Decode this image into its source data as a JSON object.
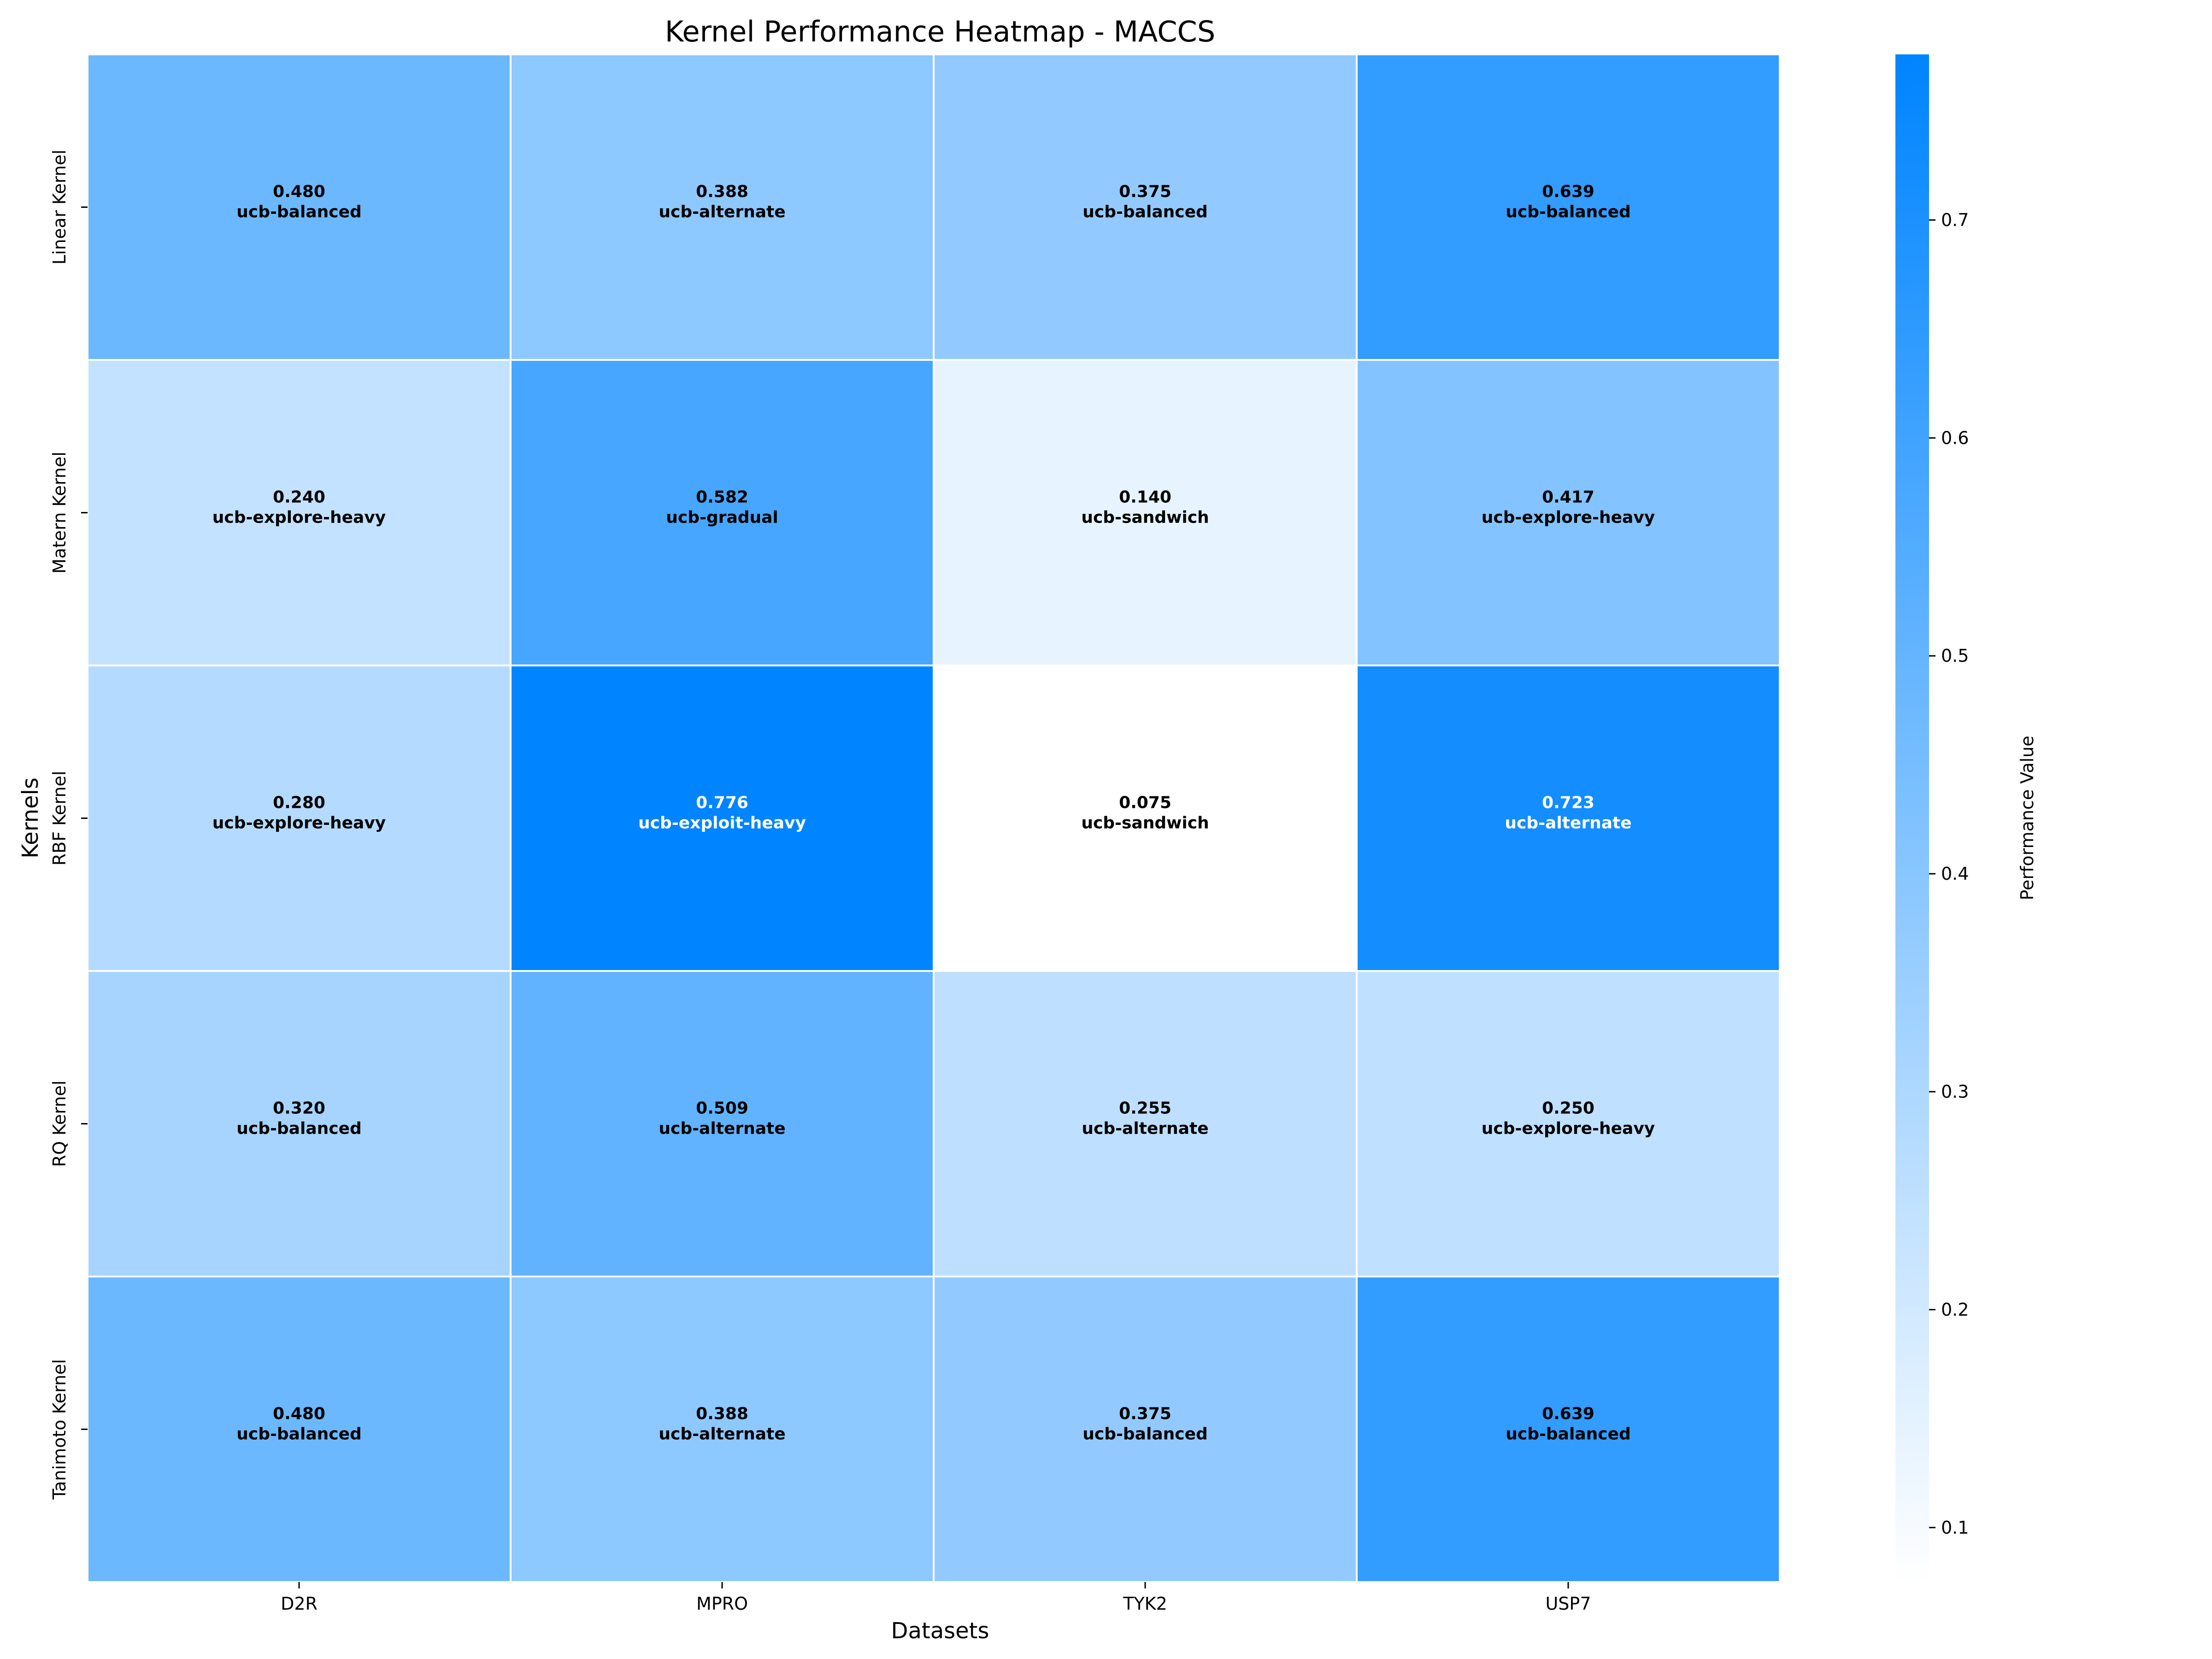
{
  "chart_data": {
    "type": "heatmap",
    "title": "Kernel Performance Heatmap - MACCS",
    "xlabel": "Datasets",
    "ylabel": "Kernels",
    "x_categories": [
      "D2R",
      "MPRO",
      "TYK2",
      "USP7"
    ],
    "y_categories": [
      "Linear Kernel",
      "Matern Kernel",
      "RBF Kernel",
      "RQ Kernel",
      "Tanimoto Kernel"
    ],
    "values": [
      [
        0.48,
        0.388,
        0.375,
        0.639
      ],
      [
        0.24,
        0.582,
        0.14,
        0.417
      ],
      [
        0.28,
        0.776,
        0.075,
        0.723
      ],
      [
        0.32,
        0.509,
        0.255,
        0.25
      ],
      [
        0.48,
        0.388,
        0.375,
        0.639
      ]
    ],
    "value_labels": [
      [
        "0.480",
        "0.388",
        "0.375",
        "0.639"
      ],
      [
        "0.240",
        "0.582",
        "0.140",
        "0.417"
      ],
      [
        "0.280",
        "0.776",
        "0.075",
        "0.723"
      ],
      [
        "0.320",
        "0.509",
        "0.255",
        "0.250"
      ],
      [
        "0.480",
        "0.388",
        "0.375",
        "0.639"
      ]
    ],
    "strategy_labels": [
      [
        "ucb-balanced",
        "ucb-alternate",
        "ucb-balanced",
        "ucb-balanced"
      ],
      [
        "ucb-explore-heavy",
        "ucb-gradual",
        "ucb-sandwich",
        "ucb-explore-heavy"
      ],
      [
        "ucb-explore-heavy",
        "ucb-exploit-heavy",
        "ucb-sandwich",
        "ucb-alternate"
      ],
      [
        "ucb-balanced",
        "ucb-alternate",
        "ucb-alternate",
        "ucb-explore-heavy"
      ],
      [
        "ucb-balanced",
        "ucb-alternate",
        "ucb-balanced",
        "ucb-balanced"
      ]
    ],
    "colorbar": {
      "label": "Performance Value",
      "range": [
        0.075,
        0.776
      ],
      "ticks": [
        0.1,
        0.2,
        0.3,
        0.4,
        0.5,
        0.6,
        0.7
      ],
      "colors": [
        "#ffffff",
        "#0084ff"
      ]
    },
    "grid": false
  }
}
